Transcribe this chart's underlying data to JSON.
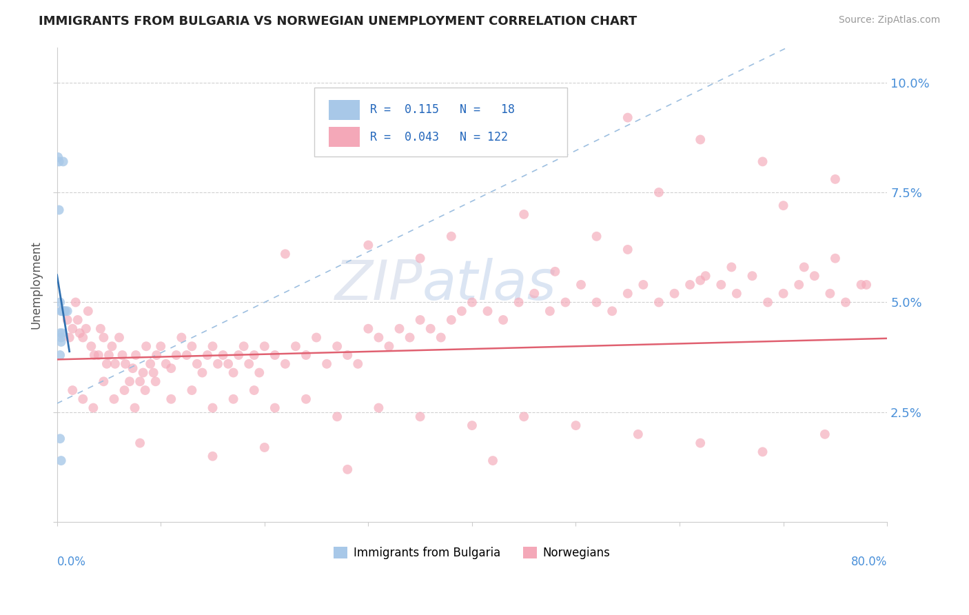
{
  "title": "IMMIGRANTS FROM BULGARIA VS NORWEGIAN UNEMPLOYMENT CORRELATION CHART",
  "source": "Source: ZipAtlas.com",
  "ylabel": "Unemployment",
  "r_bulgaria": 0.115,
  "n_bulgaria": 18,
  "r_norwegians": 0.043,
  "n_norwegians": 122,
  "xlim": [
    0.0,
    0.8
  ],
  "ylim": [
    0.0,
    0.108
  ],
  "bg_color": "#ffffff",
  "grid_color": "#d0d0d0",
  "bulgaria_color": "#a8c8e8",
  "norway_color": "#f4a8b8",
  "trendline_bulgaria_color": "#7ab0d8",
  "trendline_norway_color": "#e06070",
  "bulgaria_points_x": [
    0.001,
    0.002,
    0.002,
    0.003,
    0.003,
    0.003,
    0.004,
    0.004,
    0.004,
    0.005,
    0.005,
    0.006,
    0.006,
    0.007,
    0.008,
    0.01,
    0.003,
    0.004
  ],
  "bulgaria_points_y": [
    0.083,
    0.082,
    0.071,
    0.05,
    0.043,
    0.038,
    0.048,
    0.042,
    0.041,
    0.048,
    0.043,
    0.082,
    0.048,
    0.048,
    0.048,
    0.048,
    0.019,
    0.014
  ],
  "norway_points_x": [
    0.01,
    0.012,
    0.015,
    0.018,
    0.02,
    0.022,
    0.025,
    0.028,
    0.03,
    0.033,
    0.036,
    0.04,
    0.042,
    0.045,
    0.048,
    0.05,
    0.053,
    0.056,
    0.06,
    0.063,
    0.066,
    0.07,
    0.073,
    0.076,
    0.08,
    0.083,
    0.086,
    0.09,
    0.093,
    0.096,
    0.1,
    0.105,
    0.11,
    0.115,
    0.12,
    0.125,
    0.13,
    0.135,
    0.14,
    0.145,
    0.15,
    0.155,
    0.16,
    0.165,
    0.17,
    0.175,
    0.18,
    0.185,
    0.19,
    0.195,
    0.2,
    0.21,
    0.22,
    0.23,
    0.24,
    0.25,
    0.26,
    0.27,
    0.28,
    0.29,
    0.3,
    0.31,
    0.32,
    0.33,
    0.34,
    0.35,
    0.36,
    0.37,
    0.38,
    0.39,
    0.4,
    0.415,
    0.43,
    0.445,
    0.46,
    0.475,
    0.49,
    0.505,
    0.52,
    0.535,
    0.55,
    0.565,
    0.58,
    0.595,
    0.61,
    0.625,
    0.64,
    0.655,
    0.67,
    0.685,
    0.7,
    0.715,
    0.73,
    0.745,
    0.76,
    0.775,
    0.015,
    0.025,
    0.035,
    0.045,
    0.055,
    0.065,
    0.075,
    0.085,
    0.095,
    0.11,
    0.13,
    0.15,
    0.17,
    0.19,
    0.21,
    0.24,
    0.27,
    0.31,
    0.35,
    0.4,
    0.45,
    0.5,
    0.56,
    0.62,
    0.68,
    0.74
  ],
  "norway_points_y": [
    0.046,
    0.042,
    0.044,
    0.05,
    0.046,
    0.043,
    0.042,
    0.044,
    0.048,
    0.04,
    0.038,
    0.038,
    0.044,
    0.042,
    0.036,
    0.038,
    0.04,
    0.036,
    0.042,
    0.038,
    0.036,
    0.032,
    0.035,
    0.038,
    0.032,
    0.034,
    0.04,
    0.036,
    0.034,
    0.038,
    0.04,
    0.036,
    0.035,
    0.038,
    0.042,
    0.038,
    0.04,
    0.036,
    0.034,
    0.038,
    0.04,
    0.036,
    0.038,
    0.036,
    0.034,
    0.038,
    0.04,
    0.036,
    0.038,
    0.034,
    0.04,
    0.038,
    0.036,
    0.04,
    0.038,
    0.042,
    0.036,
    0.04,
    0.038,
    0.036,
    0.044,
    0.042,
    0.04,
    0.044,
    0.042,
    0.046,
    0.044,
    0.042,
    0.046,
    0.048,
    0.05,
    0.048,
    0.046,
    0.05,
    0.052,
    0.048,
    0.05,
    0.054,
    0.05,
    0.048,
    0.052,
    0.054,
    0.05,
    0.052,
    0.054,
    0.056,
    0.054,
    0.052,
    0.056,
    0.05,
    0.052,
    0.054,
    0.056,
    0.052,
    0.05,
    0.054,
    0.03,
    0.028,
    0.026,
    0.032,
    0.028,
    0.03,
    0.026,
    0.03,
    0.032,
    0.028,
    0.03,
    0.026,
    0.028,
    0.03,
    0.026,
    0.028,
    0.024,
    0.026,
    0.024,
    0.022,
    0.024,
    0.022,
    0.02,
    0.018,
    0.016,
    0.02
  ],
  "marker_size": 100,
  "watermark_text": "ZIP",
  "watermark_text2": "atlas"
}
